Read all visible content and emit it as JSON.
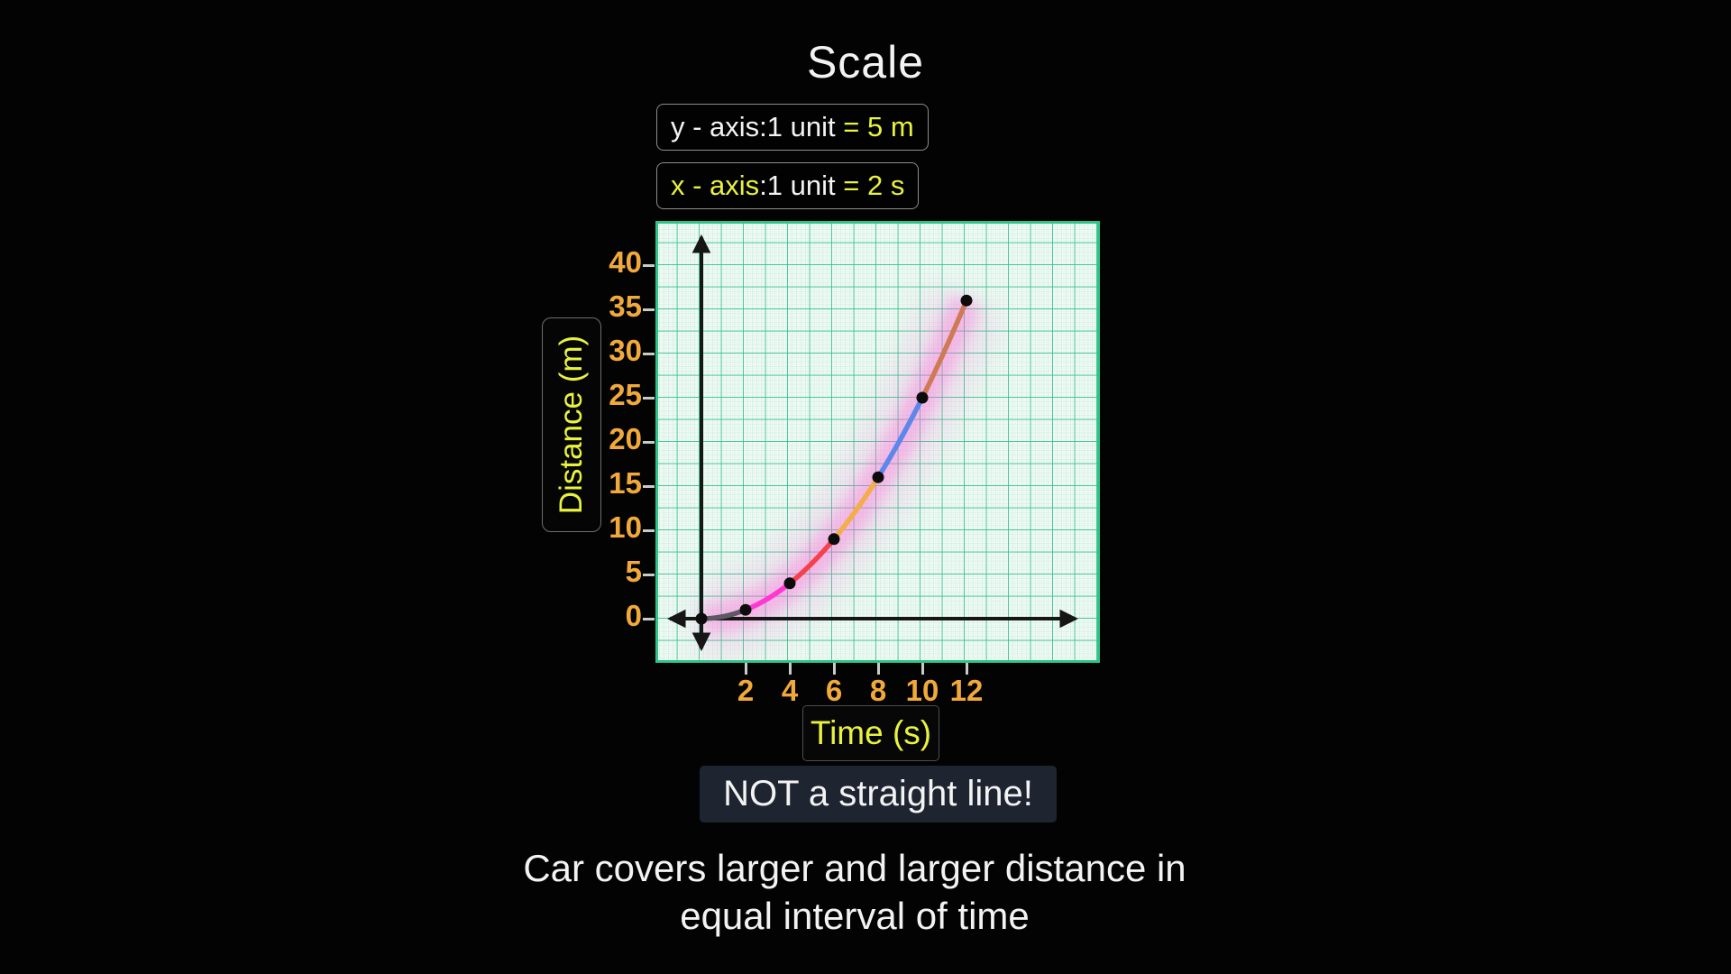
{
  "title": "Scale",
  "scale_legend": {
    "y_white": "y - axis:1 unit ",
    "y_yellow": "= 5 m",
    "x_yellow1": "x - axis",
    "x_white": ":1 unit ",
    "x_yellow2": "= 2 s"
  },
  "chart_data": {
    "type": "line",
    "title": "Scale",
    "xlabel": "Time (s)",
    "ylabel": "Distance (m)",
    "x_scale_note": "x - axis: 1 unit = 2 s",
    "y_scale_note": "y - axis: 1 unit = 5 m",
    "x": [
      0,
      2,
      4,
      6,
      8,
      10,
      12
    ],
    "y": [
      0,
      1,
      4,
      9,
      16,
      25,
      36
    ],
    "x_ticks": [
      2,
      4,
      6,
      8,
      10,
      12
    ],
    "y_ticks": [
      0,
      5,
      10,
      15,
      20,
      25,
      30,
      35,
      40
    ],
    "xlim": [
      -2.1,
      18
    ],
    "ylim": [
      -5,
      45
    ],
    "grid": true,
    "legend": "none",
    "curve_shape": "parabolic (d = t^2/4), not a straight line",
    "segment_colors": [
      "#5e5866",
      "#ff38d2",
      "#f7404e",
      "#f3ae49",
      "#5d87eb",
      "#ce7a55"
    ],
    "point_color": "#0c0c0c",
    "glow_color": "#ff66d9"
  },
  "colors": {
    "accent_yellow": "#e9f23d",
    "axis_numbers_orange": "#f2a93b",
    "text_white": "#f3f3f3",
    "callout_bg": "#1e2531",
    "grid_green": "#2ebf8a",
    "paper": "#f3fbf6"
  },
  "annotations": {
    "callout": "NOT a straight line!",
    "caption_line1": "Car covers larger and larger distance in",
    "caption_line2": "equal interval of time"
  }
}
